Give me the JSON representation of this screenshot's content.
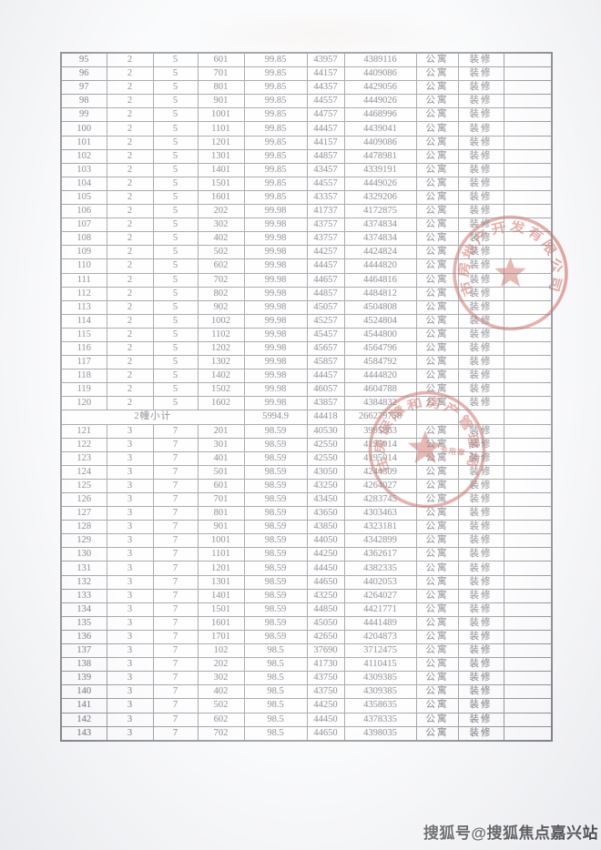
{
  "table": {
    "cell_names": [
      "cell-no",
      "cell-building",
      "cell-unit",
      "cell-room",
      "cell-area",
      "cell-unit-price",
      "cell-total-price",
      "cell-type",
      "cell-decoration",
      "cell-extra"
    ],
    "unit_type_label": "公寓",
    "decoration_label": "装修",
    "rows_building2": [
      [
        "95",
        "2",
        "5",
        "601",
        "99.85",
        "43957",
        "4389116"
      ],
      [
        "96",
        "2",
        "5",
        "701",
        "99.85",
        "44157",
        "4409086"
      ],
      [
        "97",
        "2",
        "5",
        "801",
        "99.85",
        "44357",
        "4429056"
      ],
      [
        "98",
        "2",
        "5",
        "901",
        "99.85",
        "44557",
        "4449026"
      ],
      [
        "99",
        "2",
        "5",
        "1001",
        "99.85",
        "44757",
        "4468996"
      ],
      [
        "100",
        "2",
        "5",
        "1101",
        "99.85",
        "44457",
        "4439041"
      ],
      [
        "101",
        "2",
        "5",
        "1201",
        "99.85",
        "44157",
        "4409086"
      ],
      [
        "102",
        "2",
        "5",
        "1301",
        "99.85",
        "44857",
        "4478981"
      ],
      [
        "103",
        "2",
        "5",
        "1401",
        "99.85",
        "43457",
        "4339191"
      ],
      [
        "104",
        "2",
        "5",
        "1501",
        "99.85",
        "44557",
        "4449026"
      ],
      [
        "105",
        "2",
        "5",
        "1601",
        "99.85",
        "43357",
        "4329206"
      ],
      [
        "106",
        "2",
        "5",
        "202",
        "99.98",
        "41737",
        "4172875"
      ],
      [
        "107",
        "2",
        "5",
        "302",
        "99.98",
        "43757",
        "4374834"
      ],
      [
        "108",
        "2",
        "5",
        "402",
        "99.98",
        "43757",
        "4374834"
      ],
      [
        "109",
        "2",
        "5",
        "502",
        "99.98",
        "44257",
        "4424824"
      ],
      [
        "110",
        "2",
        "5",
        "602",
        "99.98",
        "44457",
        "4444820"
      ],
      [
        "111",
        "2",
        "5",
        "702",
        "99.98",
        "44657",
        "4464816"
      ],
      [
        "112",
        "2",
        "5",
        "802",
        "99.98",
        "44857",
        "4484812"
      ],
      [
        "113",
        "2",
        "5",
        "902",
        "99.98",
        "45057",
        "4504808"
      ],
      [
        "114",
        "2",
        "5",
        "1002",
        "99.98",
        "45257",
        "4524804"
      ],
      [
        "115",
        "2",
        "5",
        "1102",
        "99.98",
        "45457",
        "4544800"
      ],
      [
        "116",
        "2",
        "5",
        "1202",
        "99.98",
        "45657",
        "4564796"
      ],
      [
        "117",
        "2",
        "5",
        "1302",
        "99.98",
        "45857",
        "4584792"
      ],
      [
        "118",
        "2",
        "5",
        "1402",
        "99.98",
        "44457",
        "4444820"
      ],
      [
        "119",
        "2",
        "5",
        "1502",
        "99.98",
        "46057",
        "4604788"
      ],
      [
        "120",
        "2",
        "5",
        "1602",
        "99.98",
        "43857",
        "4384832"
      ]
    ],
    "subtotal": {
      "label": "2幢小计",
      "area": "5994.9",
      "avg_price": "44418",
      "total_price": "266279758"
    },
    "rows_building3": [
      [
        "121",
        "3",
        "7",
        "201",
        "98.59",
        "40530",
        "3995863"
      ],
      [
        "122",
        "3",
        "7",
        "301",
        "98.59",
        "42550",
        "4195014"
      ],
      [
        "123",
        "3",
        "7",
        "401",
        "98.59",
        "42550",
        "4195014"
      ],
      [
        "124",
        "3",
        "7",
        "501",
        "98.59",
        "43050",
        "4244309"
      ],
      [
        "125",
        "3",
        "7",
        "601",
        "98.59",
        "43250",
        "4264027"
      ],
      [
        "126",
        "3",
        "7",
        "701",
        "98.59",
        "43450",
        "4283745"
      ],
      [
        "127",
        "3",
        "7",
        "801",
        "98.59",
        "43650",
        "4303463"
      ],
      [
        "128",
        "3",
        "7",
        "901",
        "98.59",
        "43850",
        "4323181"
      ],
      [
        "129",
        "3",
        "7",
        "1001",
        "98.59",
        "44050",
        "4342899"
      ],
      [
        "130",
        "3",
        "7",
        "1101",
        "98.59",
        "44250",
        "4362617"
      ],
      [
        "131",
        "3",
        "7",
        "1201",
        "98.59",
        "44450",
        "4382335"
      ],
      [
        "132",
        "3",
        "7",
        "1301",
        "98.59",
        "44650",
        "4402053"
      ],
      [
        "133",
        "3",
        "7",
        "1401",
        "98.59",
        "43250",
        "4264027"
      ],
      [
        "134",
        "3",
        "7",
        "1501",
        "98.59",
        "44850",
        "4421771"
      ],
      [
        "135",
        "3",
        "7",
        "1601",
        "98.59",
        "45050",
        "4441489"
      ],
      [
        "136",
        "3",
        "7",
        "1701",
        "98.59",
        "42650",
        "4204873"
      ],
      [
        "137",
        "3",
        "7",
        "102",
        "98.5",
        "37690",
        "3712475"
      ],
      [
        "138",
        "3",
        "7",
        "202",
        "98.5",
        "41730",
        "4110415"
      ],
      [
        "139",
        "3",
        "7",
        "302",
        "98.5",
        "43750",
        "4309385"
      ],
      [
        "140",
        "3",
        "7",
        "402",
        "98.5",
        "43750",
        "4309385"
      ],
      [
        "141",
        "3",
        "7",
        "502",
        "98.5",
        "44250",
        "4358635"
      ],
      [
        "142",
        "3",
        "7",
        "602",
        "98.5",
        "44450",
        "4378335"
      ],
      [
        "143",
        "3",
        "7",
        "702",
        "98.5",
        "44650",
        "4398035"
      ]
    ]
  },
  "stamps": [
    {
      "arc_text": "市房地产开发有限公司",
      "color": "#c23527"
    },
    {
      "arc_text": "住房保障和房产管理局",
      "inner_text": "专用章",
      "color": "#c23527"
    }
  ],
  "watermark": {
    "text": "搜狐号@搜狐焦点嘉兴站"
  }
}
